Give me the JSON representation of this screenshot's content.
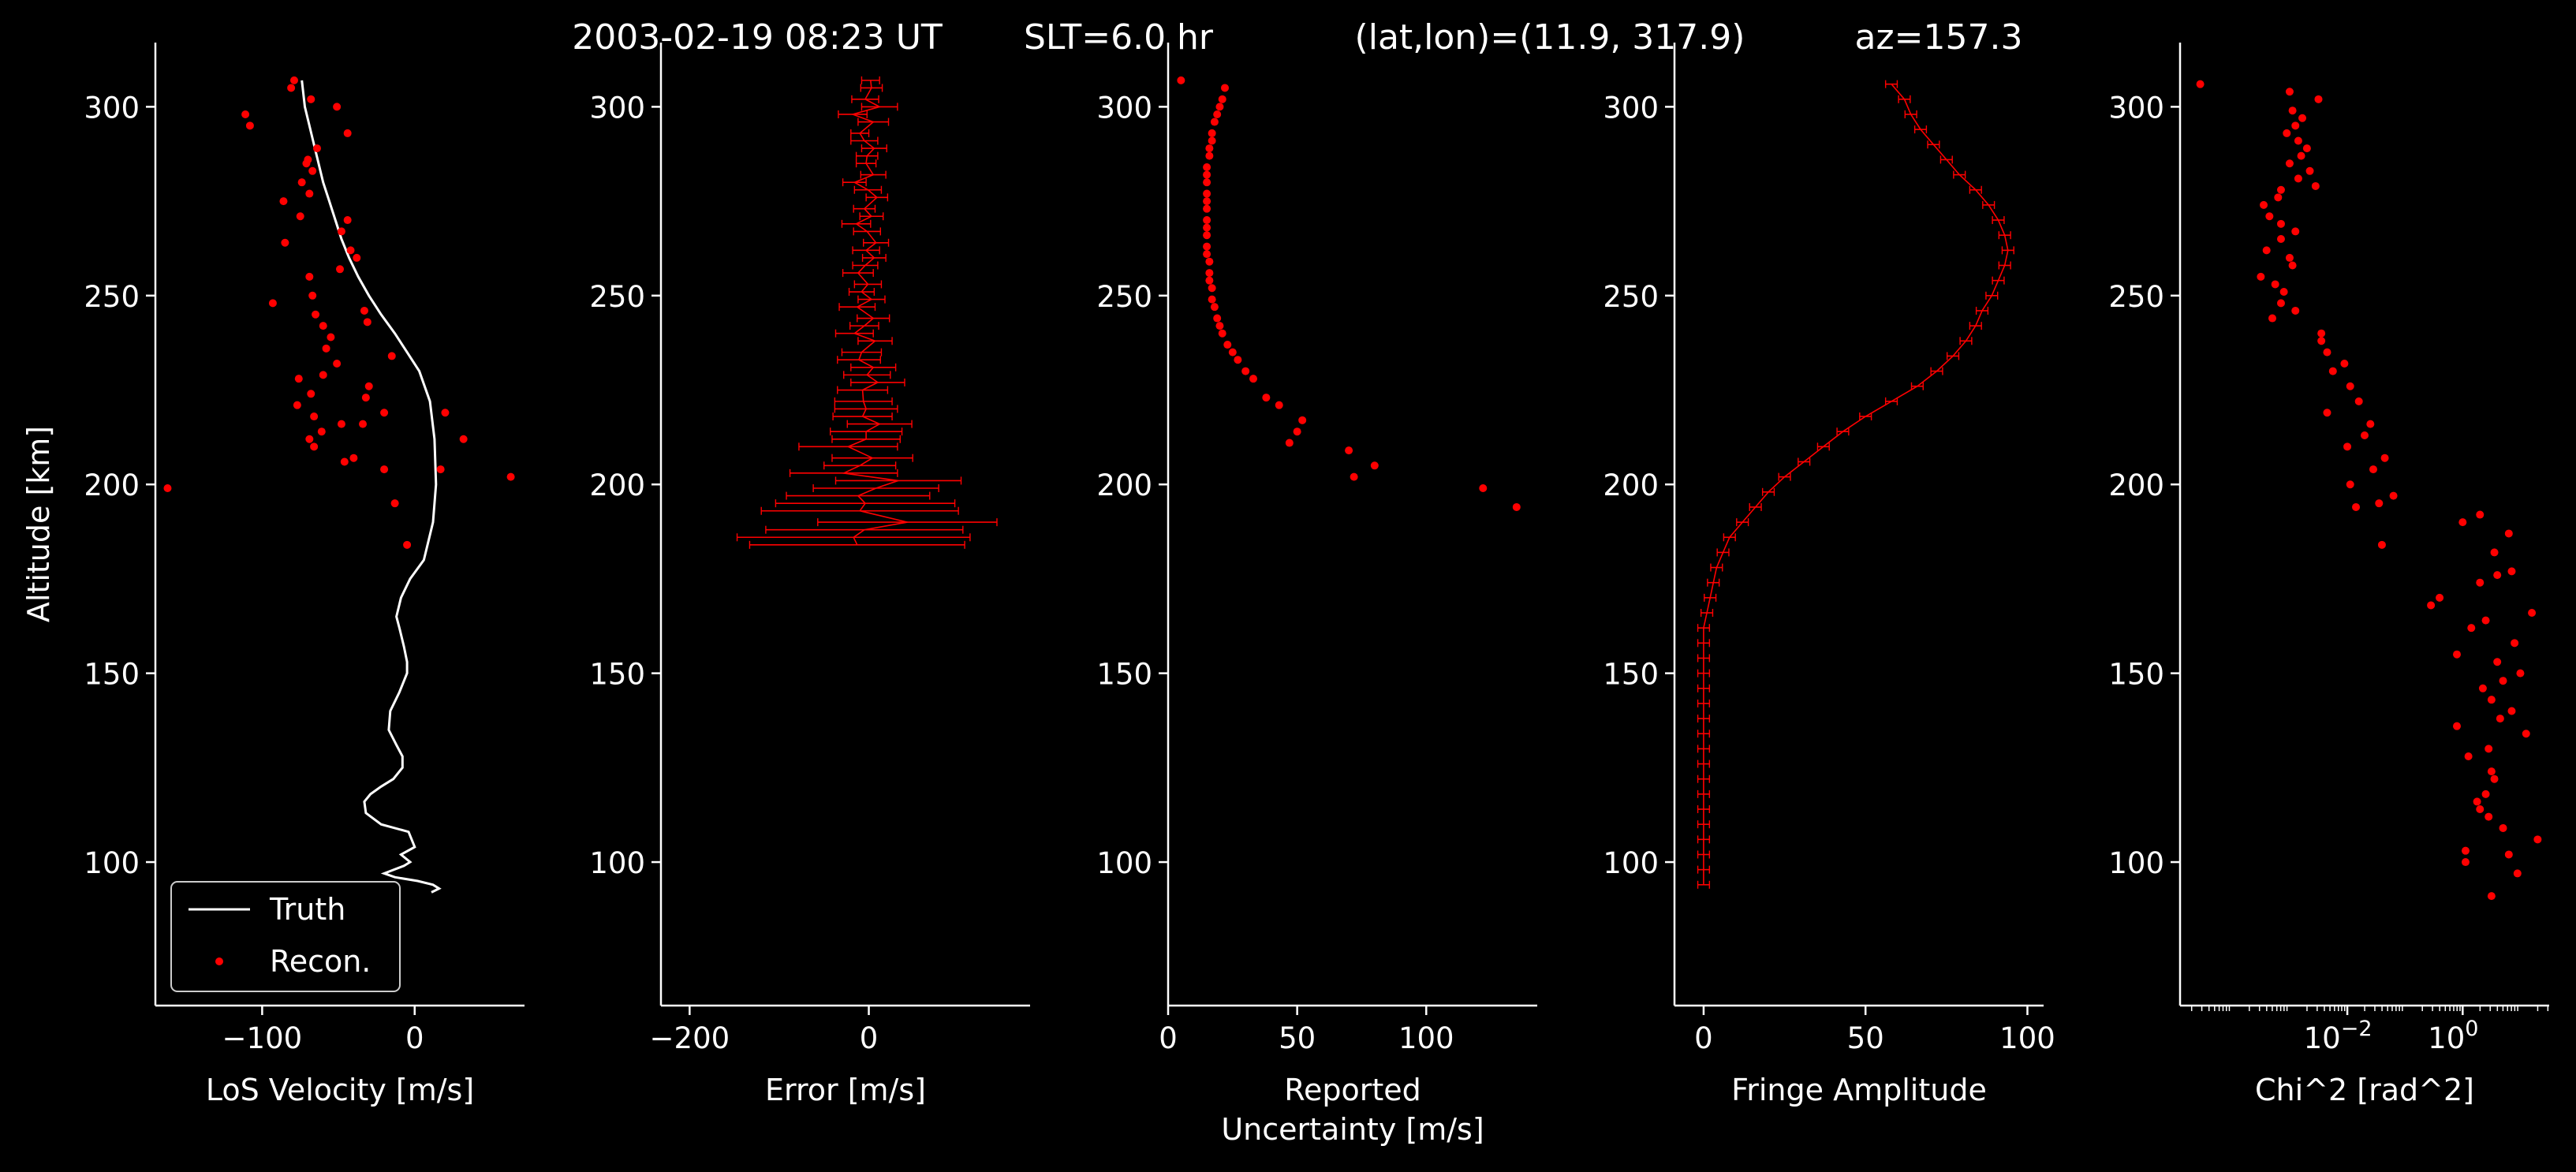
{
  "figure": {
    "background": "#000000",
    "foreground": "#ffffff",
    "marker_color": "#ff0000",
    "title_parts": [
      "2003-02-19 08:23 UT",
      "SLT=6.0 hr",
      "(lat,lon)=(11.9, 317.9)",
      "az=157.3"
    ]
  },
  "chart_data": [
    {
      "type": "line",
      "xlabel": [
        "LoS Velocity [m/s]"
      ],
      "ylabel": "Altitude [km]",
      "xlim": [
        -170,
        72
      ],
      "ylim": [
        62,
        317
      ],
      "xticks": [
        -100,
        0
      ],
      "xticklabels": [
        "−100",
        "0"
      ],
      "yticks": [
        100,
        150,
        200,
        250,
        300
      ],
      "yticklabels": [
        "100",
        "150",
        "200",
        "250",
        "300"
      ],
      "legend": {
        "placement": "lower-left",
        "entries": [
          "Truth",
          "Recon."
        ]
      },
      "series": [
        {
          "name": "Truth",
          "kind": "line",
          "color": "#ffffff",
          "x": [
            -74,
            -72,
            -69,
            -66,
            -63,
            -60,
            -56,
            -52,
            -48,
            -43,
            -37,
            -30,
            -22,
            -13,
            -5,
            3,
            10,
            13,
            14,
            12,
            6,
            -3,
            -9,
            -12,
            -10,
            -7,
            -5,
            -5,
            -10,
            -16,
            -17,
            -12,
            -8,
            -8,
            -14,
            -22,
            -29,
            -33,
            -32,
            -22,
            -4,
            -2,
            0,
            -9,
            -3,
            -7,
            -20,
            -13,
            2,
            12,
            16,
            11
          ],
          "y": [
            307,
            300,
            295,
            290,
            285,
            280,
            275,
            270,
            265,
            260,
            255,
            250,
            245,
            240,
            235,
            230,
            222,
            212,
            200,
            190,
            180,
            175,
            170,
            165,
            162,
            157,
            153,
            150,
            145,
            140,
            135,
            131,
            128,
            125,
            122,
            120,
            118,
            116,
            113,
            110,
            108,
            106,
            104,
            102,
            100,
            99,
            97,
            96,
            95,
            94,
            93,
            92
          ]
        },
        {
          "name": "Recon.",
          "kind": "scatter",
          "color": "#ff0000",
          "x": [
            -79,
            -81,
            -111,
            -108,
            -68,
            -51,
            -44,
            -64,
            -70,
            -67,
            -71,
            -74,
            -69,
            -86,
            -75,
            -44,
            -48,
            -85,
            -42,
            -38,
            -49,
            -69,
            -67,
            -93,
            -65,
            -60,
            -55,
            -58,
            -33,
            -31,
            -51,
            -15,
            -76,
            -60,
            -30,
            -68,
            -32,
            -77,
            -66,
            -20,
            -48,
            -61,
            -69,
            -34,
            -40,
            20,
            -46,
            -66,
            -20,
            32,
            17,
            -162,
            63,
            -13,
            -5
          ],
          "y": [
            307,
            305,
            298,
            295,
            302,
            300,
            293,
            289,
            286,
            283,
            285,
            280,
            277,
            275,
            271,
            270,
            267,
            264,
            262,
            260,
            257,
            255,
            250,
            248,
            245,
            242,
            239,
            236,
            246,
            243,
            232,
            234,
            228,
            229,
            226,
            224,
            223,
            221,
            218,
            219,
            216,
            214,
            212,
            216,
            207,
            219,
            206,
            210,
            204,
            212,
            204,
            199,
            202,
            195,
            184
          ]
        }
      ]
    },
    {
      "type": "line",
      "xlabel": [
        "Error [m/s]"
      ],
      "xlim": [
        -232,
        180
      ],
      "ylim": [
        62,
        317
      ],
      "xticks": [
        -200,
        0
      ],
      "xticklabels": [
        "−200",
        "0"
      ],
      "yticks": [
        100,
        150,
        200,
        250,
        300
      ],
      "yticklabels": [
        "100",
        "150",
        "200",
        "250",
        "300"
      ],
      "series": [
        {
          "name": "",
          "kind": "errorbar",
          "color": "#ff0000",
          "x": [
            2,
            3,
            -4,
            12,
            -18,
            5,
            -10,
            -5,
            6,
            -2,
            -3,
            5,
            -16,
            -1,
            9,
            -5,
            3,
            -14,
            -2,
            8,
            -3,
            6,
            -4,
            -12,
            -1,
            -8,
            3,
            -13,
            5,
            -5,
            -16,
            7,
            -8,
            -11,
            5,
            -2,
            10,
            -7,
            -6,
            -3,
            -7,
            12,
            -3,
            -3,
            -23,
            4,
            -10,
            -28,
            33,
            8,
            -12,
            -4,
            -10,
            43,
            -5,
            -17,
            -13
          ],
          "xerr": [
            10,
            12,
            15,
            20,
            16,
            17,
            10,
            15,
            14,
            12,
            11,
            14,
            13,
            15,
            12,
            12,
            13,
            16,
            15,
            14,
            15,
            13,
            14,
            17,
            15,
            14,
            15,
            20,
            18,
            16,
            21,
            19,
            22,
            24,
            25,
            26,
            30,
            28,
            32,
            35,
            33,
            36,
            40,
            38,
            55,
            45,
            40,
            60,
            70,
            70,
            80,
            100,
            110,
            100,
            110,
            130,
            120
          ],
          "y": [
            307,
            305,
            302,
            300,
            298,
            296,
            293,
            291,
            289,
            287,
            285,
            282,
            280,
            278,
            276,
            273,
            271,
            269,
            267,
            264,
            262,
            260,
            258,
            256,
            253,
            251,
            249,
            247,
            244,
            242,
            240,
            238,
            235,
            233,
            231,
            229,
            227,
            225,
            222,
            220,
            218,
            216,
            214,
            212,
            210,
            207,
            205,
            203,
            201,
            199,
            197,
            195,
            193,
            190,
            188,
            186,
            184
          ]
        }
      ]
    },
    {
      "type": "scatter",
      "xlabel": [
        "Reported",
        "Uncertainty [m/s]"
      ],
      "xlim": [
        0,
        143
      ],
      "ylim": [
        62,
        317
      ],
      "xticks": [
        0,
        50,
        100
      ],
      "xticklabels": [
        "0",
        "50",
        "100"
      ],
      "yticks": [
        100,
        150,
        200,
        250,
        300
      ],
      "yticklabels": [
        "100",
        "150",
        "200",
        "250",
        "300"
      ],
      "series": [
        {
          "name": "",
          "kind": "scatter",
          "color": "#ff0000",
          "x": [
            5,
            22,
            21,
            20,
            19,
            18,
            17,
            17,
            16,
            16,
            15,
            15,
            15,
            15,
            15,
            15,
            15,
            15,
            15,
            15,
            15,
            16,
            16,
            16,
            17,
            17,
            18,
            19,
            20,
            21,
            23,
            25,
            27,
            30,
            33,
            38,
            43,
            52,
            50,
            47,
            70,
            80,
            72,
            122,
            135
          ],
          "y": [
            307,
            305,
            302,
            300,
            298,
            296,
            293,
            291,
            289,
            287,
            284,
            282,
            280,
            277,
            275,
            273,
            270,
            268,
            266,
            263,
            261,
            259,
            256,
            254,
            252,
            249,
            247,
            244,
            242,
            240,
            237,
            235,
            233,
            230,
            228,
            223,
            221,
            217,
            214,
            211,
            209,
            205,
            202,
            199,
            194
          ]
        }
      ]
    },
    {
      "type": "line",
      "xlabel": [
        "Fringe Amplitude"
      ],
      "xlim": [
        -9,
        105
      ],
      "ylim": [
        62,
        317
      ],
      "xticks": [
        0,
        50,
        100
      ],
      "xticklabels": [
        "0",
        "50",
        "100"
      ],
      "yticks": [
        100,
        150,
        200,
        250,
        300
      ],
      "yticklabels": [
        "100",
        "150",
        "200",
        "250",
        "300"
      ],
      "series": [
        {
          "name": "",
          "kind": "errorbar",
          "color": "#ff0000",
          "x": [
            58,
            62,
            64,
            67,
            71,
            75,
            79,
            84,
            88,
            91,
            93,
            94,
            93,
            91,
            89,
            86,
            84,
            81,
            77,
            72,
            66,
            58,
            50,
            43,
            37,
            31,
            25,
            20,
            16,
            12,
            8,
            6,
            4,
            3,
            2,
            1,
            0,
            0,
            0,
            0,
            0,
            0,
            0,
            0,
            0,
            0,
            0,
            0,
            0,
            0,
            0,
            0,
            0,
            0
          ],
          "xerr": 1.8,
          "y": [
            306,
            302,
            298,
            294,
            290,
            286,
            282,
            278,
            274,
            270,
            266,
            262,
            258,
            254,
            250,
            246,
            242,
            238,
            234,
            230,
            226,
            222,
            218,
            214,
            210,
            206,
            202,
            198,
            194,
            190,
            186,
            182,
            178,
            174,
            170,
            166,
            162,
            158,
            154,
            150,
            146,
            142,
            138,
            134,
            130,
            126,
            122,
            118,
            114,
            110,
            106,
            102,
            98,
            94
          ]
        }
      ]
    },
    {
      "type": "scatter",
      "xlabel": [
        "Chi^2 [rad^2]"
      ],
      "xscale": "log",
      "xlim_log10": [
        -4.9,
        1.5
      ],
      "ylim": [
        62,
        317
      ],
      "xticks_log10": [
        -2,
        0
      ],
      "xticklabels": [
        "10",
        "10"
      ],
      "xticksup": [
        "−2",
        "0"
      ],
      "yticks": [
        100,
        150,
        200,
        250,
        300
      ],
      "yticklabels": [
        "100",
        "150",
        "200",
        "250",
        "300"
      ],
      "series": [
        {
          "name": "",
          "kind": "scatter",
          "color": "#ff0000",
          "x_log10": [
            -4.55,
            -3.0,
            -2.5,
            -2.95,
            -2.78,
            -2.9,
            -3.05,
            -2.85,
            -2.7,
            -2.8,
            -3.0,
            -2.65,
            -2.85,
            -2.55,
            -3.15,
            -3.2,
            -3.45,
            -3.35,
            -3.15,
            -2.9,
            -3.15,
            -3.4,
            -3.0,
            -2.95,
            -3.5,
            -3.25,
            -3.1,
            -3.15,
            -2.9,
            -3.3,
            -2.45,
            -2.45,
            -2.35,
            -2.05,
            -2.25,
            -1.95,
            -1.8,
            -2.35,
            -1.6,
            -1.7,
            -2.0,
            -1.35,
            -1.55,
            -1.95,
            -1.2,
            -1.45,
            -1.85,
            -1.4,
            0.0,
            0.3,
            0.8,
            0.55,
            0.85,
            0.3,
            0.6,
            -0.4,
            -0.55,
            1.2,
            0.4,
            0.15,
            0.9,
            -0.1,
            0.6,
            1.0,
            0.7,
            0.35,
            0.5,
            0.85,
            0.65,
            -0.1,
            1.1,
            0.45,
            0.1,
            0.5,
            0.55,
            0.4,
            0.25,
            0.3,
            0.45,
            0.7,
            1.3,
            0.05,
            0.8,
            0.05,
            0.95,
            0.5
          ],
          "y": [
            306,
            304,
            302,
            299,
            297,
            295,
            293,
            291,
            289,
            287,
            285,
            283,
            281,
            279,
            278,
            276,
            274,
            271,
            269,
            267,
            265,
            262,
            260,
            258,
            255,
            253,
            251,
            248,
            246,
            244,
            240,
            238,
            235,
            232,
            230,
            226,
            222,
            219,
            216,
            213,
            210,
            207,
            204,
            200,
            197,
            195,
            194,
            184,
            190,
            192,
            187,
            182,
            177,
            174,
            176,
            170,
            168,
            166,
            164,
            162,
            158,
            155,
            153,
            150,
            148,
            146,
            143,
            140,
            138,
            136,
            134,
            130,
            128,
            124,
            122,
            118,
            116,
            114,
            112,
            109,
            106,
            103,
            102,
            100,
            97,
            91
          ]
        }
      ]
    }
  ]
}
